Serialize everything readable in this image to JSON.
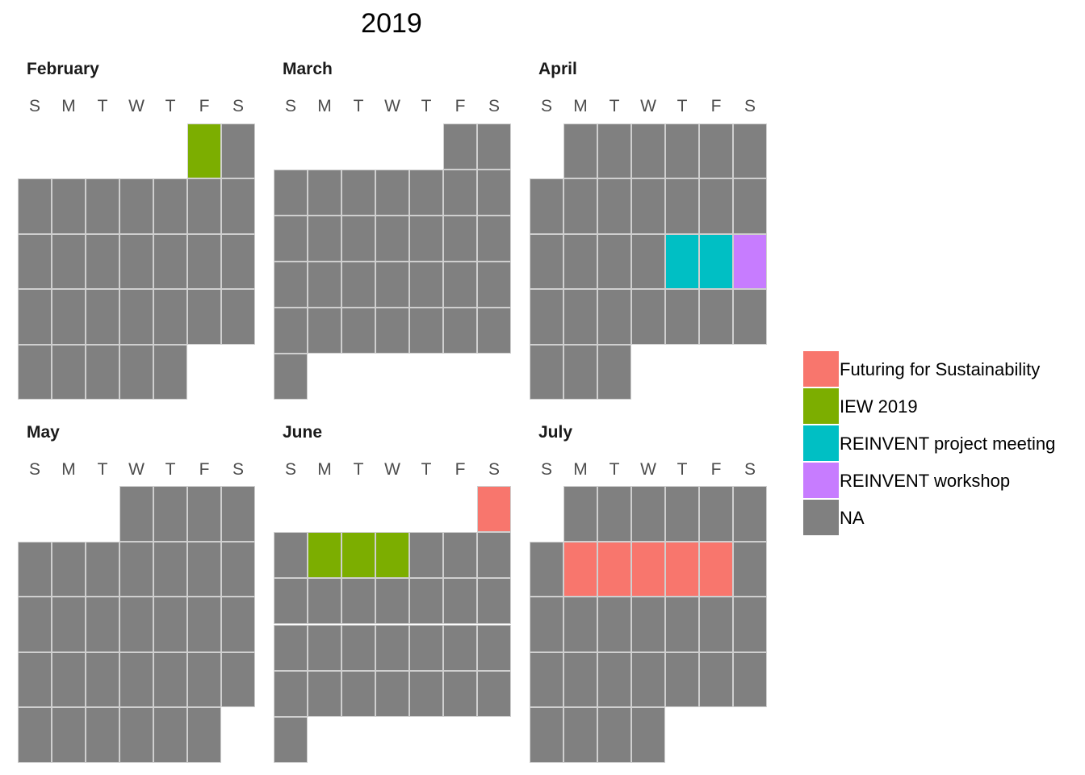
{
  "chart_data": {
    "type": "heatmap",
    "subtype": "calendar",
    "title": "2019",
    "year": 2019,
    "weekday_labels": [
      "S",
      "M",
      "T",
      "W",
      "T",
      "F",
      "S"
    ],
    "na_label": "NA",
    "months": [
      {
        "name": "February",
        "month": 2,
        "days": 28,
        "first_weekday": 5
      },
      {
        "name": "March",
        "month": 3,
        "days": 31,
        "first_weekday": 5
      },
      {
        "name": "April",
        "month": 4,
        "days": 30,
        "first_weekday": 1
      },
      {
        "name": "May",
        "month": 5,
        "days": 31,
        "first_weekday": 3
      },
      {
        "name": "June",
        "month": 6,
        "days": 30,
        "first_weekday": 6
      },
      {
        "name": "July",
        "month": 7,
        "days": 31,
        "first_weekday": 1
      }
    ],
    "legend": [
      {
        "label": "Futuring for Sustainability",
        "color": "#F8766D"
      },
      {
        "label": "IEW 2019",
        "color": "#7CAE00"
      },
      {
        "label": "REINVENT project meeting",
        "color": "#00BFC4"
      },
      {
        "label": "REINVENT workshop",
        "color": "#C77CFF"
      },
      {
        "label": "NA",
        "color": "#808080"
      }
    ],
    "events": [
      {
        "date": "2019-02-01",
        "event": "IEW 2019"
      },
      {
        "date": "2019-04-18",
        "event": "REINVENT project meeting"
      },
      {
        "date": "2019-04-19",
        "event": "REINVENT project meeting"
      },
      {
        "date": "2019-04-20",
        "event": "REINVENT workshop"
      },
      {
        "date": "2019-06-01",
        "event": "Futuring for Sustainability"
      },
      {
        "date": "2019-06-03",
        "event": "IEW 2019"
      },
      {
        "date": "2019-06-04",
        "event": "IEW 2019"
      },
      {
        "date": "2019-06-05",
        "event": "IEW 2019"
      },
      {
        "date": "2019-07-08",
        "event": "Futuring for Sustainability"
      },
      {
        "date": "2019-07-09",
        "event": "Futuring for Sustainability"
      },
      {
        "date": "2019-07-10",
        "event": "Futuring for Sustainability"
      },
      {
        "date": "2019-07-11",
        "event": "Futuring for Sustainability"
      },
      {
        "date": "2019-07-12",
        "event": "Futuring for Sustainability"
      }
    ]
  }
}
